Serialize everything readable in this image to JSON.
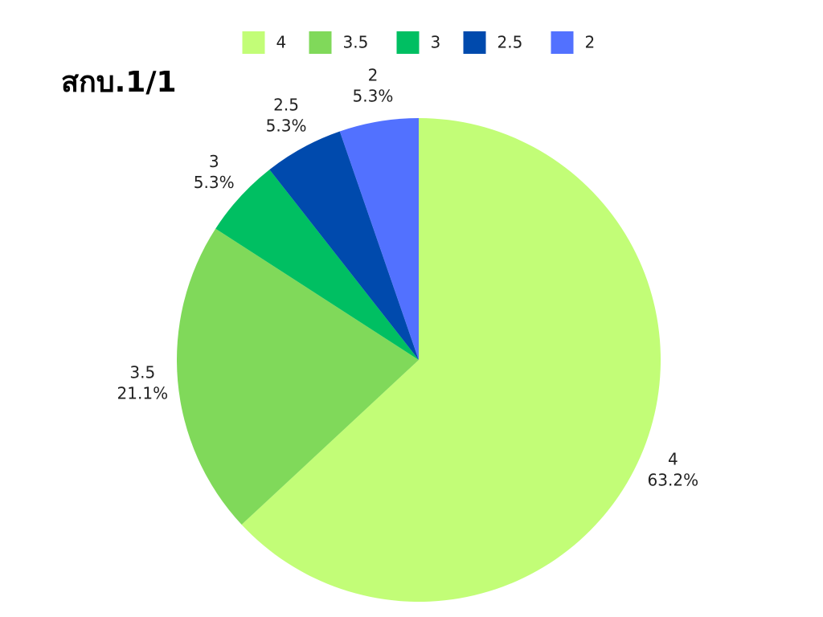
{
  "chart_data": {
    "type": "pie",
    "title": "สกบ.1/1",
    "categories": [
      "4",
      "3.5",
      "3",
      "2.5",
      "2"
    ],
    "values": [
      63.2,
      21.1,
      5.3,
      5.3,
      5.3
    ],
    "value_labels": [
      "63.2%",
      "21.1%",
      "5.3%",
      "5.3%",
      "5.3%"
    ],
    "colors": [
      "#c2fd77",
      "#80d95a",
      "#00bf62",
      "#004aad",
      "#5271ff"
    ],
    "legend": "top"
  }
}
